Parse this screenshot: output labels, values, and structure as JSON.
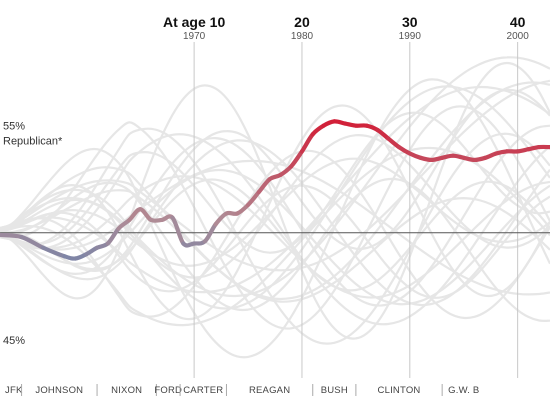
{
  "chart_data": {
    "type": "line",
    "x_unit": "age",
    "x_range": [
      -8,
      43
    ],
    "y_range": [
      43.5,
      59
    ],
    "y_ticks": [
      {
        "value": 55,
        "label": "55%"
      },
      {
        "value": 45,
        "label": "45%"
      }
    ],
    "reference_line": 50,
    "annotation": "Republican*",
    "age_markers": [
      {
        "age": 10,
        "label": "At age 10",
        "year": "1970"
      },
      {
        "age": 20,
        "label": "20",
        "year": "1980"
      },
      {
        "age": 30,
        "label": "30",
        "year": "1990"
      },
      {
        "age": 40,
        "label": "40",
        "year": "2000"
      }
    ],
    "presidents": [
      {
        "label": "JFK",
        "start": -8,
        "end": -6
      },
      {
        "label": "JOHNSON",
        "start": -6,
        "end": 1
      },
      {
        "label": "NIXON",
        "start": 1,
        "end": 6.5
      },
      {
        "label": "FORD",
        "start": 6.5,
        "end": 8.7
      },
      {
        "label": "CARTER",
        "start": 8.7,
        "end": 13
      },
      {
        "label": "REAGAN",
        "start": 13,
        "end": 21
      },
      {
        "label": "BUSH",
        "start": 21,
        "end": 25
      },
      {
        "label": "CLINTON",
        "start": 25,
        "end": 33
      },
      {
        "label": "G.W. B",
        "start": 33,
        "end": 43
      }
    ],
    "series": [
      {
        "highlighted": true,
        "x": [
          -8,
          -6,
          -4,
          -2,
          -1,
          0,
          1,
          2,
          3,
          4,
          5,
          6,
          7,
          8,
          9,
          10,
          11,
          12,
          13,
          14,
          15,
          16,
          17,
          18,
          19,
          20,
          21,
          22,
          23,
          24,
          25,
          26,
          27,
          28,
          29,
          30,
          31,
          32,
          33,
          34,
          35,
          36,
          37,
          38,
          39,
          40,
          41,
          42,
          43
        ],
        "y": [
          49.9,
          49.8,
          49.3,
          48.9,
          48.8,
          49.0,
          49.3,
          49.5,
          50.2,
          50.6,
          51.1,
          50.6,
          50.6,
          50.7,
          49.5,
          49.5,
          49.6,
          50.4,
          50.9,
          50.9,
          51.3,
          51.9,
          52.5,
          52.7,
          53.1,
          53.8,
          54.6,
          55.0,
          55.2,
          55.1,
          55.0,
          55.0,
          54.8,
          54.4,
          54.0,
          53.7,
          53.5,
          53.4,
          53.5,
          53.6,
          53.5,
          53.4,
          53.5,
          53.7,
          53.8,
          53.8,
          53.9,
          54.0,
          54.0
        ]
      }
    ]
  }
}
